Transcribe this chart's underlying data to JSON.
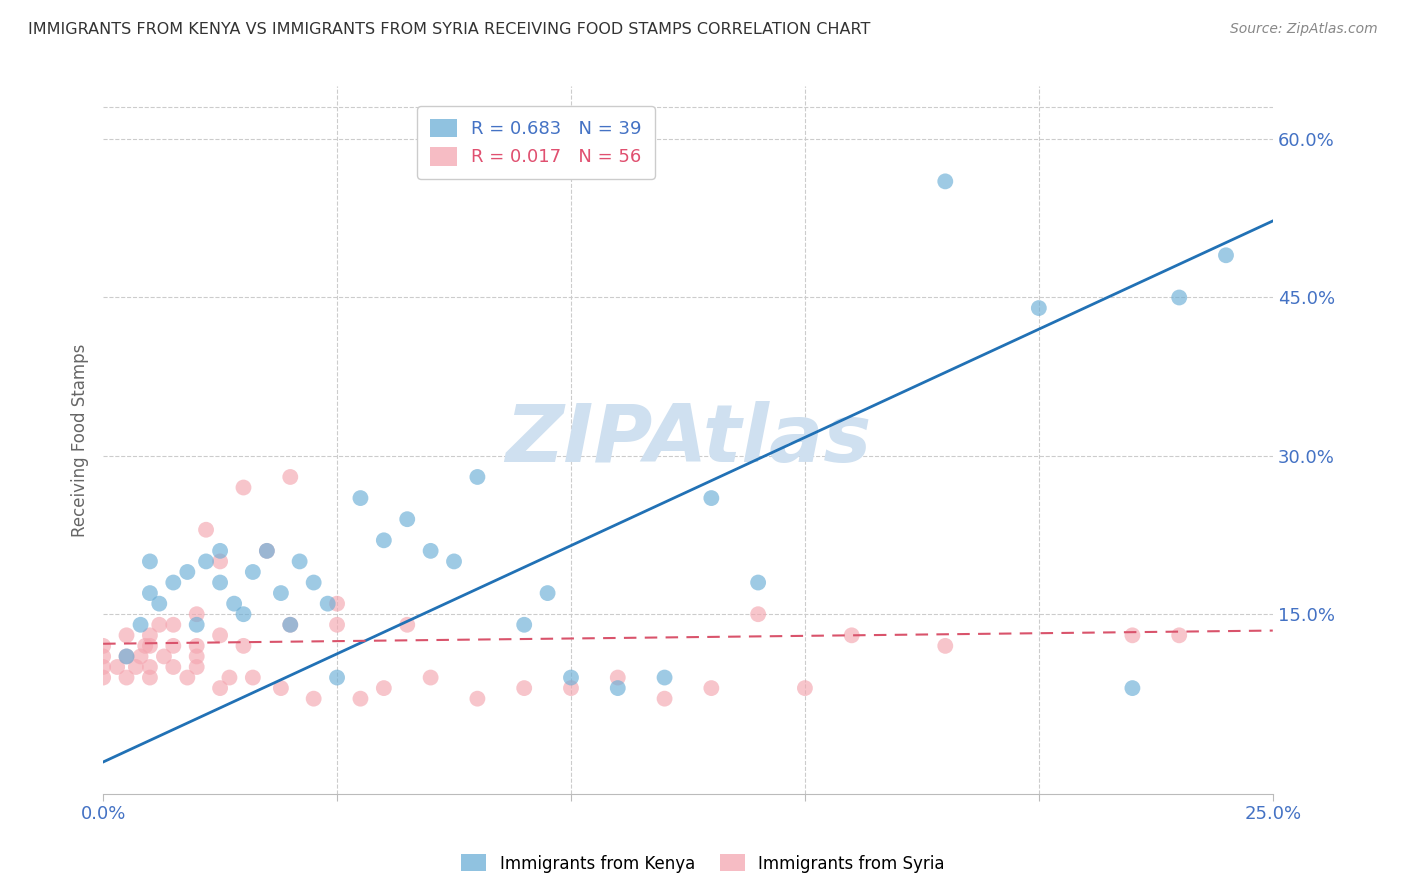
{
  "title": "IMMIGRANTS FROM KENYA VS IMMIGRANTS FROM SYRIA RECEIVING FOOD STAMPS CORRELATION CHART",
  "source": "Source: ZipAtlas.com",
  "ylabel": "Receiving Food Stamps",
  "xlim": [
    0.0,
    0.25
  ],
  "ylim": [
    -0.02,
    0.65
  ],
  "x_ticks": [
    0.0,
    0.05,
    0.1,
    0.15,
    0.2,
    0.25
  ],
  "x_tick_labels": [
    "0.0%",
    "",
    "",
    "",
    "",
    "25.0%"
  ],
  "y_ticks_right": [
    0.15,
    0.3,
    0.45,
    0.6
  ],
  "y_tick_labels_right": [
    "15.0%",
    "30.0%",
    "45.0%",
    "60.0%"
  ],
  "kenya_color": "#6baed6",
  "syria_color": "#f4a6b0",
  "kenya_line_color": "#2171b5",
  "syria_line_color": "#d9536b",
  "watermark": "ZIPAtlas",
  "watermark_color": "#cfe0f0",
  "kenya_scatter_x": [
    0.005,
    0.008,
    0.01,
    0.01,
    0.012,
    0.015,
    0.018,
    0.02,
    0.022,
    0.025,
    0.025,
    0.028,
    0.03,
    0.032,
    0.035,
    0.038,
    0.04,
    0.042,
    0.045,
    0.048,
    0.05,
    0.055,
    0.06,
    0.065,
    0.07,
    0.075,
    0.08,
    0.09,
    0.095,
    0.1,
    0.11,
    0.12,
    0.13,
    0.14,
    0.18,
    0.2,
    0.22,
    0.23,
    0.24
  ],
  "kenya_scatter_y": [
    0.11,
    0.14,
    0.17,
    0.2,
    0.16,
    0.18,
    0.19,
    0.14,
    0.2,
    0.18,
    0.21,
    0.16,
    0.15,
    0.19,
    0.21,
    0.17,
    0.14,
    0.2,
    0.18,
    0.16,
    0.09,
    0.26,
    0.22,
    0.24,
    0.21,
    0.2,
    0.28,
    0.14,
    0.17,
    0.09,
    0.08,
    0.09,
    0.26,
    0.18,
    0.56,
    0.44,
    0.08,
    0.45,
    0.49
  ],
  "syria_scatter_x": [
    0.0,
    0.0,
    0.0,
    0.0,
    0.003,
    0.005,
    0.005,
    0.005,
    0.007,
    0.008,
    0.009,
    0.01,
    0.01,
    0.01,
    0.01,
    0.012,
    0.013,
    0.015,
    0.015,
    0.015,
    0.018,
    0.02,
    0.02,
    0.02,
    0.02,
    0.022,
    0.025,
    0.025,
    0.025,
    0.027,
    0.03,
    0.03,
    0.032,
    0.035,
    0.038,
    0.04,
    0.04,
    0.045,
    0.05,
    0.05,
    0.055,
    0.06,
    0.065,
    0.07,
    0.08,
    0.09,
    0.1,
    0.11,
    0.12,
    0.13,
    0.14,
    0.15,
    0.16,
    0.18,
    0.22,
    0.23
  ],
  "syria_scatter_y": [
    0.09,
    0.1,
    0.11,
    0.12,
    0.1,
    0.09,
    0.11,
    0.13,
    0.1,
    0.11,
    0.12,
    0.09,
    0.1,
    0.12,
    0.13,
    0.14,
    0.11,
    0.1,
    0.12,
    0.14,
    0.09,
    0.1,
    0.11,
    0.12,
    0.15,
    0.23,
    0.08,
    0.13,
    0.2,
    0.09,
    0.12,
    0.27,
    0.09,
    0.21,
    0.08,
    0.14,
    0.28,
    0.07,
    0.14,
    0.16,
    0.07,
    0.08,
    0.14,
    0.09,
    0.07,
    0.08,
    0.08,
    0.09,
    0.07,
    0.08,
    0.15,
    0.08,
    0.13,
    0.12,
    0.13,
    0.13
  ],
  "kenya_intercept": 0.01,
  "kenya_slope": 2.05,
  "syria_intercept": 0.122,
  "syria_slope": 0.05,
  "background_color": "#ffffff",
  "grid_color": "#cccccc",
  "title_color": "#333333",
  "axis_color": "#4472c4",
  "tick_color": "#4472c4"
}
